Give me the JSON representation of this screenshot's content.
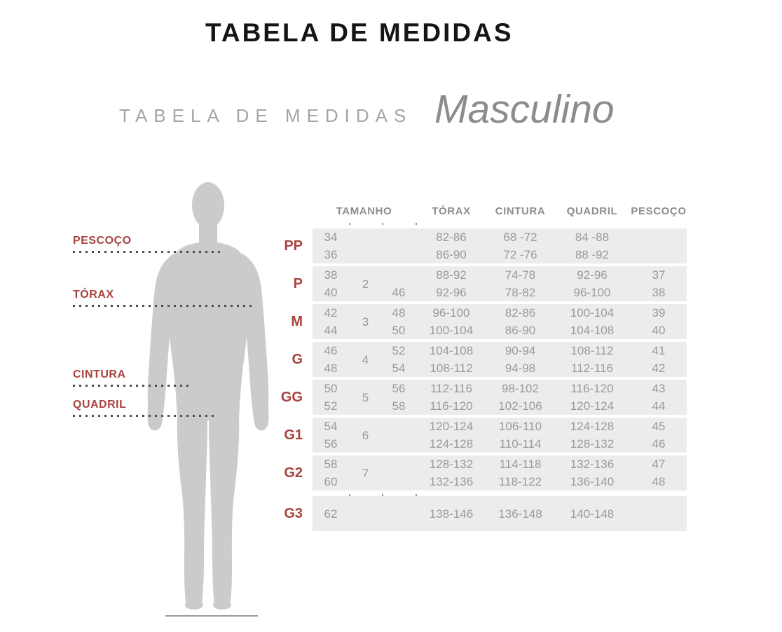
{
  "page": {
    "title": "TABELA DE MEDIDAS",
    "subtitle": "TABELA DE MEDIDAS",
    "subtitle_emphasis": "Masculino"
  },
  "figure": {
    "silhouette": "male-body-silhouette",
    "measurement_labels": [
      "PESCOÇO",
      "TÓRAX",
      "CINTURA",
      "QUADRIL"
    ]
  },
  "table": {
    "headers": [
      "TAMANHO",
      "TÓRAX",
      "CINTURA",
      "QUADRIL",
      "PESCOÇO"
    ],
    "rows": [
      {
        "size": "PP",
        "sizes": [
          "34",
          "36"
        ],
        "group": "",
        "alt": [
          "",
          ""
        ],
        "torax": [
          "82-86",
          "86-90"
        ],
        "cintura": [
          "68 -72",
          "72 -76"
        ],
        "quadril": [
          "84 -88",
          "88 -92"
        ],
        "pescoco": [
          "",
          ""
        ]
      },
      {
        "size": "P",
        "sizes": [
          "38",
          "40"
        ],
        "group": "2",
        "alt": [
          "",
          "46"
        ],
        "torax": [
          "88-92",
          "92-96"
        ],
        "cintura": [
          "74-78",
          "78-82"
        ],
        "quadril": [
          "92-96",
          "96-100"
        ],
        "pescoco": [
          "37",
          "38"
        ]
      },
      {
        "size": "M",
        "sizes": [
          "42",
          "44"
        ],
        "group": "3",
        "alt": [
          "48",
          "50"
        ],
        "torax": [
          "96-100",
          "100-104"
        ],
        "cintura": [
          "82-86",
          "86-90"
        ],
        "quadril": [
          "100-104",
          "104-108"
        ],
        "pescoco": [
          "39",
          "40"
        ]
      },
      {
        "size": "G",
        "sizes": [
          "46",
          "48"
        ],
        "group": "4",
        "alt": [
          "52",
          "54"
        ],
        "torax": [
          "104-108",
          "108-112"
        ],
        "cintura": [
          "90-94",
          "94-98"
        ],
        "quadril": [
          "108-112",
          "112-116"
        ],
        "pescoco": [
          "41",
          "42"
        ]
      },
      {
        "size": "GG",
        "sizes": [
          "50",
          "52"
        ],
        "group": "5",
        "alt": [
          "56",
          "58"
        ],
        "torax": [
          "112-116",
          "116-120"
        ],
        "cintura": [
          "98-102",
          "102-106"
        ],
        "quadril": [
          "116-120",
          "120-124"
        ],
        "pescoco": [
          "43",
          "44"
        ]
      },
      {
        "size": "G1",
        "sizes": [
          "54",
          "56"
        ],
        "group": "6",
        "alt": [
          "",
          ""
        ],
        "torax": [
          "120-124",
          "124-128"
        ],
        "cintura": [
          "106-110",
          "110-114"
        ],
        "quadril": [
          "124-128",
          "128-132"
        ],
        "pescoco": [
          "45",
          "46"
        ]
      },
      {
        "size": "G2",
        "sizes": [
          "58",
          "60"
        ],
        "group": "7",
        "alt": [
          "",
          ""
        ],
        "torax": [
          "128-132",
          "132-136"
        ],
        "cintura": [
          "114-118",
          "118-122"
        ],
        "quadril": [
          "132-136",
          "136-140"
        ],
        "pescoco": [
          "47",
          "48"
        ]
      },
      {
        "size": "G3",
        "sizes": [
          "62"
        ],
        "group": "",
        "alt": [],
        "torax": [
          "138-146"
        ],
        "cintura": [
          "136-148"
        ],
        "quadril": [
          "140-148"
        ],
        "pescoco": [
          ""
        ]
      }
    ]
  },
  "colors": {
    "accent_red": "#a8433f",
    "band_gray": "#ececec",
    "value_text_gray": "#9a9a9a",
    "heading_gray": "#a5a5a5",
    "silhouette_gray": "#cbcbcb",
    "title_black": "#151515"
  }
}
